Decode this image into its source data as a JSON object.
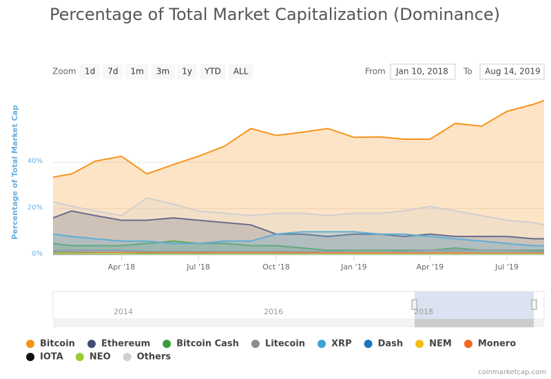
{
  "chart_data": {
    "type": "area",
    "title": "Percentage of Total Market Capitalization (Dominance)",
    "y_label": "Percentage of Total Market Cap",
    "x": [
      "2018-01-10",
      "2018-02",
      "2018-03",
      "2018-04",
      "2018-05",
      "2018-06",
      "2018-07",
      "2018-08",
      "2018-09",
      "2018-10",
      "2018-11",
      "2018-12",
      "2019-01",
      "2019-02",
      "2019-03",
      "2019-04",
      "2019-05",
      "2019-06",
      "2019-07",
      "2019-08",
      "2019-08-14"
    ],
    "xlim": [
      "2018-01-10",
      "2019-08-14"
    ],
    "xticks": [
      {
        "value": "2018-04",
        "label": "Apr '18"
      },
      {
        "value": "2018-07",
        "label": "Jul '18"
      },
      {
        "value": "2018-10",
        "label": "Oct '18"
      },
      {
        "value": "2019-01",
        "label": "Jan '19"
      },
      {
        "value": "2019-04",
        "label": "Apr '19"
      },
      {
        "value": "2019-07",
        "label": "Jul '19"
      }
    ],
    "ylim": [
      0,
      72
    ],
    "yticks": [
      {
        "value": 0,
        "label": "0%"
      },
      {
        "value": 20,
        "label": "20%"
      },
      {
        "value": 40,
        "label": "40%"
      }
    ],
    "grid": true,
    "series": [
      {
        "name": "Bitcoin",
        "color": "#f7931a",
        "values": [
          33.6,
          35,
          40.5,
          42.6,
          35,
          39,
          42.6,
          47,
          54.6,
          51.6,
          53,
          54.6,
          50.8,
          51,
          50,
          50,
          56.8,
          55.6,
          62,
          65,
          66.7
        ]
      },
      {
        "name": "Ethereum",
        "color": "#454a75",
        "values": [
          16,
          19,
          17,
          15,
          15,
          16,
          15,
          14,
          13,
          9,
          9,
          8,
          9,
          9,
          8,
          9,
          8,
          8,
          8,
          7,
          7
        ]
      },
      {
        "name": "Bitcoin Cash",
        "color": "#3c9b3c",
        "values": [
          5,
          4,
          4,
          4,
          5,
          6,
          5,
          5,
          4,
          4,
          3,
          2,
          2,
          2,
          2,
          2,
          3,
          2,
          2,
          2,
          2
        ]
      },
      {
        "name": "Litecoin",
        "color": "#8c8c8c",
        "values": [
          2,
          2,
          2,
          2,
          1.5,
          1.5,
          1.5,
          1.5,
          1.5,
          1.5,
          1.5,
          1.5,
          1,
          1,
          1.5,
          2,
          2,
          2,
          2,
          1.5,
          1.5
        ]
      },
      {
        "name": "XRP",
        "color": "#3aa3d8",
        "values": [
          9,
          8,
          7,
          6,
          6,
          5,
          5,
          6,
          6,
          9,
          10,
          10,
          10,
          9,
          9,
          8,
          7,
          6,
          5,
          4,
          4
        ]
      },
      {
        "name": "Dash",
        "color": "#1c75bc",
        "values": [
          1.2,
          1.1,
          1,
          1,
          1,
          0.9,
          0.9,
          0.8,
          0.8,
          0.8,
          0.7,
          0.6,
          0.6,
          0.6,
          0.6,
          0.7,
          0.6,
          0.5,
          0.5,
          0.4,
          0.4
        ]
      },
      {
        "name": "NEM",
        "color": "#f3bd18",
        "values": [
          0.8,
          0.7,
          0.6,
          0.5,
          0.5,
          0.4,
          0.4,
          0.4,
          0.4,
          0.4,
          0.3,
          0.3,
          0.3,
          0.3,
          0.3,
          0.3,
          0.3,
          0.3,
          0.3,
          0.3,
          0.3
        ]
      },
      {
        "name": "Monero",
        "color": "#f26822",
        "values": [
          1,
          1,
          1,
          1,
          1,
          1,
          1,
          1,
          1,
          1,
          1,
          0.9,
          0.9,
          0.9,
          0.9,
          0.9,
          0.9,
          0.8,
          0.8,
          0.8,
          0.8
        ]
      },
      {
        "name": "IOTA",
        "color": "#111111",
        "values": [
          0.8,
          0.7,
          0.6,
          0.6,
          0.6,
          0.5,
          0.5,
          0.4,
          0.4,
          0.4,
          0.3,
          0.3,
          0.3,
          0.3,
          0.3,
          0.3,
          0.3,
          0.3,
          0.3,
          0.3,
          0.3
        ]
      },
      {
        "name": "NEO",
        "color": "#9acd32",
        "values": [
          0.8,
          0.7,
          0.6,
          0.6,
          0.5,
          0.5,
          0.4,
          0.4,
          0.4,
          0.4,
          0.3,
          0.3,
          0.3,
          0.3,
          0.3,
          0.3,
          0.3,
          0.3,
          0.3,
          0.3,
          0.3
        ]
      },
      {
        "name": "Others",
        "color": "#cfcfcf",
        "values": [
          23,
          21,
          19,
          17,
          24.6,
          22,
          19,
          18,
          17,
          18,
          18,
          17,
          18,
          18,
          19,
          21,
          19,
          17,
          15,
          14,
          13
        ]
      }
    ]
  },
  "range_selector": {
    "zoom_label": "Zoom",
    "buttons": [
      "1d",
      "7d",
      "1m",
      "3m",
      "1y",
      "YTD",
      "ALL"
    ],
    "from_label": "From",
    "from": "Jan 10, 2018",
    "to_label": "To",
    "to": "Aug 14, 2019"
  },
  "navigator": {
    "labels": [
      "2014",
      "2016",
      "2018"
    ]
  },
  "credit": "coinmarketcap.com"
}
